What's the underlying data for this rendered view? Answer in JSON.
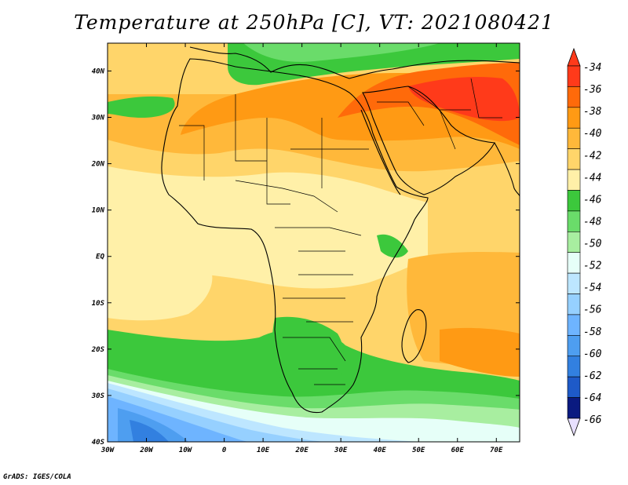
{
  "title": "Temperature at 250hPa [C], VT: 2021080421",
  "credit": "GrADS: IGES/COLA",
  "map": {
    "lon_range": [
      -30,
      76
    ],
    "lat_range": [
      -40,
      46
    ],
    "lat_labels": [
      {
        "lat": 40,
        "label": "40N"
      },
      {
        "lat": 30,
        "label": "30N"
      },
      {
        "lat": 20,
        "label": "20N"
      },
      {
        "lat": 10,
        "label": "10N"
      },
      {
        "lat": 0,
        "label": "EQ"
      },
      {
        "lat": -10,
        "label": "10S"
      },
      {
        "lat": -20,
        "label": "20S"
      },
      {
        "lat": -30,
        "label": "30S"
      },
      {
        "lat": -40,
        "label": "40S"
      }
    ],
    "lon_labels": [
      {
        "lon": -30,
        "label": "30W"
      },
      {
        "lon": -20,
        "label": "20W"
      },
      {
        "lon": -10,
        "label": "10W"
      },
      {
        "lon": 0,
        "label": "0"
      },
      {
        "lon": 10,
        "label": "10E"
      },
      {
        "lon": 20,
        "label": "20E"
      },
      {
        "lon": 30,
        "label": "30E"
      },
      {
        "lon": 40,
        "label": "40E"
      },
      {
        "lon": 50,
        "label": "50E"
      },
      {
        "lon": 60,
        "label": "60E"
      },
      {
        "lon": 70,
        "label": "70E"
      }
    ]
  },
  "colorbar": {
    "labels": [
      "-34",
      "-36",
      "-38",
      "-40",
      "-42",
      "-44",
      "-46",
      "-48",
      "-50",
      "-52",
      "-54",
      "-56",
      "-58",
      "-60",
      "-62",
      "-64",
      "-66"
    ],
    "colors": [
      "#ff3a1a",
      "#ff6a0a",
      "#ff9a14",
      "#ffb83a",
      "#ffd56a",
      "#fff0a8",
      "#3cc83c",
      "#6adc6a",
      "#a8eea0",
      "#e6fff8",
      "#bde6ff",
      "#96d0ff",
      "#6eb4ff",
      "#4e9ef0",
      "#3280e0",
      "#1e5ac8",
      "#0a1a80"
    ],
    "top_arrow_color": "#ff3a1a",
    "bottom_arrow_color": "#e8e0ff"
  }
}
